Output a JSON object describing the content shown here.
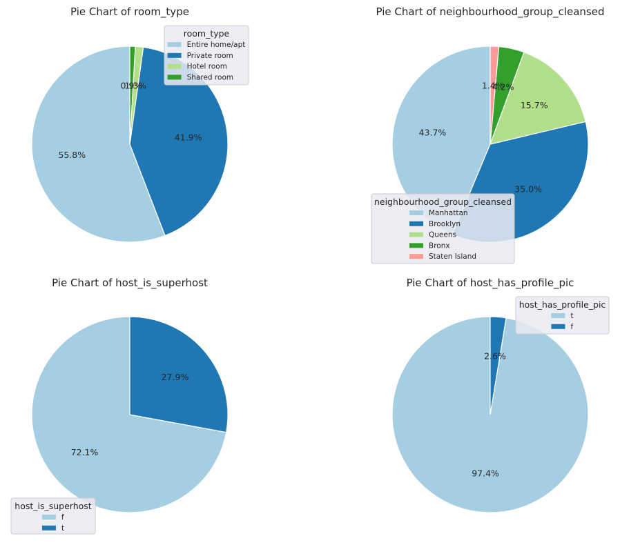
{
  "chart_data": [
    {
      "type": "pie",
      "title": "Pie Chart of room_type",
      "legend_title": "room_type",
      "legend_placement": "top-right",
      "categories": [
        "Entire home/apt",
        "Private room",
        "Hotel room",
        "Shared room"
      ],
      "values": [
        55.8,
        41.9,
        1.3,
        0.9
      ],
      "labels": [
        "55.8%",
        "41.9%",
        "1.3%",
        "0.9%"
      ],
      "colors": [
        "#a6cee3",
        "#1f78b4",
        "#b2df8a",
        "#33a02c"
      ]
    },
    {
      "type": "pie",
      "title": "Pie Chart of neighbourhood_group_cleansed",
      "legend_title": "neighbourhood_group_cleansed",
      "legend_placement": "bottom",
      "categories": [
        "Manhattan",
        "Brooklyn",
        "Queens",
        "Bronx",
        "Staten Island"
      ],
      "values": [
        43.7,
        35.0,
        15.7,
        4.2,
        1.4
      ],
      "labels": [
        "43.7%",
        "35.0%",
        "15.7%",
        "4.2%",
        "1.4%"
      ],
      "colors": [
        "#a6cee3",
        "#1f78b4",
        "#b2df8a",
        "#33a02c",
        "#fb9a99"
      ]
    },
    {
      "type": "pie",
      "title": "Pie Chart of host_is_superhost",
      "legend_title": "host_is_superhost",
      "legend_placement": "bottom-left",
      "categories": [
        "f",
        "t"
      ],
      "values": [
        72.1,
        27.9
      ],
      "labels": [
        "72.1%",
        "27.9%"
      ],
      "colors": [
        "#a6cee3",
        "#1f78b4"
      ]
    },
    {
      "type": "pie",
      "title": "Pie Chart of host_has_profile_pic",
      "legend_title": "host_has_profile_pic",
      "legend_placement": "top-right",
      "categories": [
        "t",
        "f"
      ],
      "values": [
        97.4,
        2.6
      ],
      "labels": [
        "97.4%",
        "2.6%"
      ],
      "colors": [
        "#a6cee3",
        "#1f78b4"
      ]
    }
  ]
}
